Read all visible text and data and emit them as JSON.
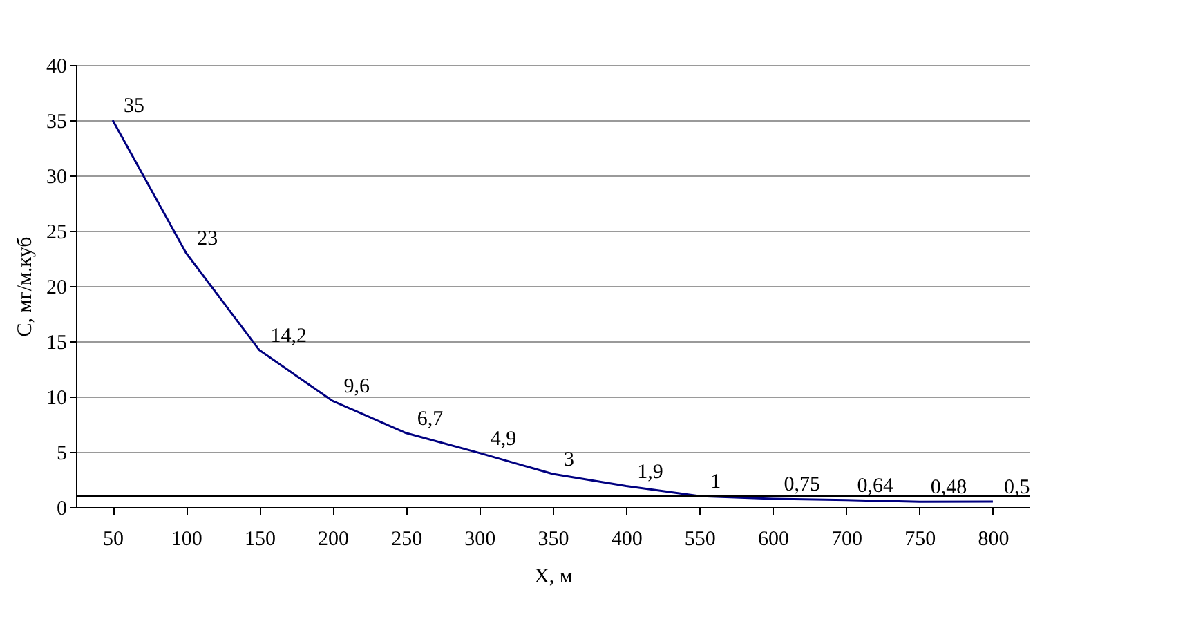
{
  "chart_data": {
    "type": "line",
    "xlabel": "Х, м",
    "ylabel": "С, мг/м.куб",
    "categories": [
      "50",
      "100",
      "150",
      "200",
      "250",
      "300",
      "350",
      "400",
      "550",
      "600",
      "700",
      "750",
      "800"
    ],
    "series": [
      {
        "color": "#000080",
        "values": [
          35,
          23,
          14.2,
          9.6,
          6.7,
          4.9,
          3,
          1.9,
          1,
          0.75,
          0.64,
          0.48,
          0.5
        ],
        "value_labels": [
          "35",
          "23",
          "14,2",
          "9,6",
          "6,7",
          "4,9",
          "3",
          "1,9",
          "1",
          "0,75",
          "0,64",
          "0,48",
          "0,5"
        ]
      }
    ],
    "ylim": [
      0,
      40
    ],
    "yticks": [
      0,
      5,
      10,
      15,
      20,
      25,
      30,
      35,
      40
    ],
    "grid": "y",
    "marker": "none",
    "line_style": "solid",
    "ref_lines": [
      {
        "axis": "y",
        "value": 1,
        "color": "#000000"
      }
    ]
  }
}
